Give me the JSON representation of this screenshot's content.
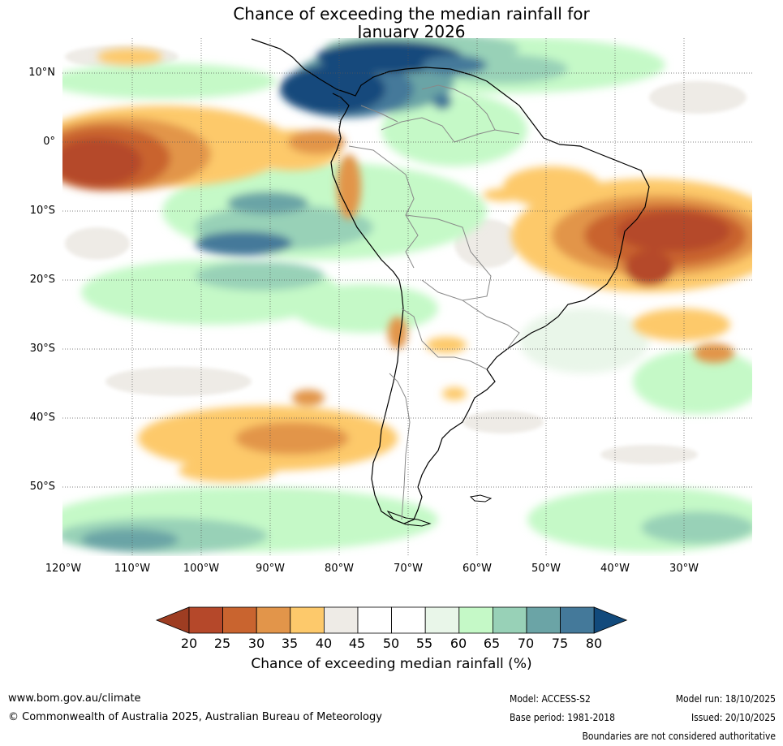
{
  "title": {
    "line1": "Chance of exceeding the median rainfall for",
    "line2": "January 2026"
  },
  "latitude_labels": [
    "10°N",
    "0°",
    "10°S",
    "20°S",
    "30°S",
    "40°S",
    "50°S"
  ],
  "longitude_labels": [
    "120°W",
    "110°W",
    "100°W",
    "90°W",
    "80°W",
    "70°W",
    "60°W",
    "50°W",
    "40°W",
    "30°W"
  ],
  "colorbar": {
    "ticks": [
      "20",
      "25",
      "30",
      "35",
      "40",
      "45",
      "50",
      "55",
      "60",
      "65",
      "70",
      "75",
      "80"
    ],
    "colors": [
      "#9e3d22",
      "#b5482a",
      "#c9642f",
      "#e2954a",
      "#fdc96b",
      "#eeebe6",
      "#ffffff",
      "#ffffff",
      "#e9f6e9",
      "#c5f9c7",
      "#98d1b7",
      "#6ba4a6",
      "#44799a",
      "#124a7c"
    ],
    "label": "Chance of exceeding median rainfall (%)"
  },
  "footer": {
    "url": "www.bom.gov.au/climate",
    "copyright": "© Commonwealth of Australia 2025, Australian Bureau of Meteorology",
    "model": "Model: ACCESS-S2",
    "base_period": "Base period: 1981-2018",
    "model_run": "Model run: 18/10/2025",
    "issued": "Issued: 20/10/2025",
    "disclaimer": "Boundaries are not considered authoritative"
  }
}
